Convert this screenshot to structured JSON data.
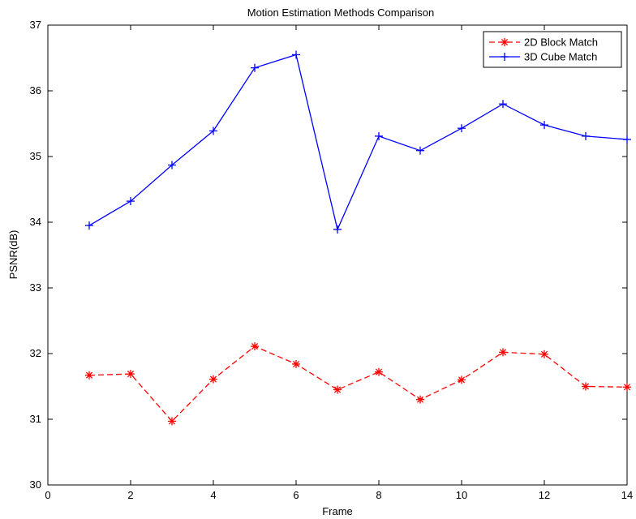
{
  "chart_data": {
    "type": "line",
    "title": "Motion Estimation Methods Comparison",
    "xlabel": "Frame",
    "ylabel": "PSNR(dB)",
    "xlim": [
      0,
      14
    ],
    "ylim": [
      30,
      37
    ],
    "xticks": [
      0,
      2,
      4,
      6,
      8,
      10,
      12,
      14
    ],
    "yticks": [
      30,
      31,
      32,
      33,
      34,
      35,
      36,
      37
    ],
    "grid": false,
    "legend_position": "top-right",
    "series": [
      {
        "name": "2D Block Match",
        "color": "#ff0000",
        "line_style": "dashed",
        "marker": "asterisk",
        "x": [
          1,
          2,
          3,
          4,
          5,
          6,
          7,
          8,
          9,
          10,
          11,
          12,
          13,
          14
        ],
        "values": [
          31.67,
          31.69,
          30.97,
          31.61,
          32.11,
          31.84,
          31.45,
          31.72,
          31.3,
          31.6,
          32.02,
          31.99,
          31.5,
          31.49
        ]
      },
      {
        "name": "3D Cube Match",
        "color": "#0000ff",
        "line_style": "solid",
        "marker": "plus",
        "x": [
          1,
          2,
          3,
          4,
          5,
          6,
          7,
          8,
          9,
          10,
          11,
          12,
          13,
          14
        ],
        "values": [
          33.95,
          34.32,
          34.87,
          35.39,
          36.35,
          36.55,
          33.89,
          35.31,
          35.09,
          35.43,
          35.8,
          35.48,
          35.31,
          35.26
        ]
      }
    ]
  }
}
